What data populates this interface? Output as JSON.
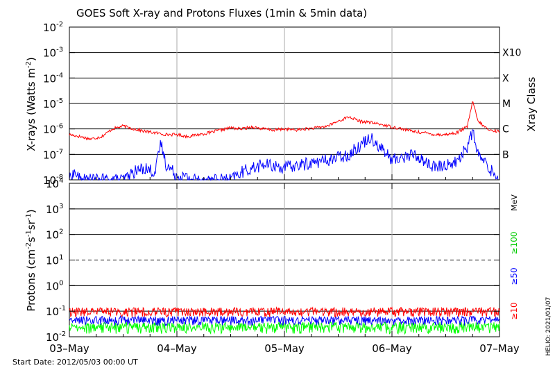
{
  "chart_data": [
    {
      "type": "line",
      "title": "GOES Soft X-ray and Protons Fluxes   (1min & 5min data)",
      "ylabel": "X-rays (Watts m",
      "ylabel_sup": "-2",
      "ylabel_close": ")",
      "yscale": "log",
      "ylim": [
        1e-08,
        0.01
      ],
      "y_ticks": [
        {
          "value": 1e-08,
          "base": "10",
          "exp": "-8"
        },
        {
          "value": 1e-07,
          "base": "10",
          "exp": "-7"
        },
        {
          "value": 1e-06,
          "base": "10",
          "exp": "-6"
        },
        {
          "value": 1e-05,
          "base": "10",
          "exp": "-5"
        },
        {
          "value": 0.0001,
          "base": "10",
          "exp": "-4"
        },
        {
          "value": 0.001,
          "base": "10",
          "exp": "-3"
        },
        {
          "value": 0.01,
          "base": "10",
          "exp": "-2"
        }
      ],
      "right_axis_label": "Xray Class",
      "class_labels": [
        {
          "value": 0.001,
          "label": "X10"
        },
        {
          "value": 0.0001,
          "label": "X"
        },
        {
          "value": 1e-05,
          "label": "M"
        },
        {
          "value": 1e-06,
          "label": "C"
        },
        {
          "value": 1e-07,
          "label": "B"
        }
      ],
      "grid_lines": [
        1e-07,
        1e-06,
        1e-05,
        0.0001,
        0.001
      ],
      "series": [
        {
          "color": "#ff0000",
          "x": [
            0,
            0.1,
            0.2,
            0.3,
            0.35,
            0.4,
            0.5,
            0.6,
            0.7,
            0.8,
            0.9,
            1.0,
            1.1,
            1.2,
            1.3,
            1.4,
            1.5,
            1.6,
            1.7,
            1.8,
            1.9,
            2.0,
            2.1,
            2.2,
            2.3,
            2.4,
            2.5,
            2.6,
            2.7,
            2.8,
            2.9,
            3.0,
            3.1,
            3.2,
            3.3,
            3.4,
            3.5,
            3.6,
            3.7,
            3.75,
            3.8,
            3.9,
            4.0
          ],
          "y": [
            6e-07,
            5e-07,
            4e-07,
            5e-07,
            7e-07,
            1e-06,
            1.3e-06,
            1e-06,
            8e-07,
            7e-07,
            6e-07,
            6e-07,
            5e-07,
            6e-07,
            7e-07,
            9e-07,
            1.1e-06,
            1e-06,
            1.2e-06,
            1e-06,
            9e-07,
            1e-06,
            9e-07,
            1e-06,
            1.1e-06,
            1.3e-06,
            2e-06,
            3e-06,
            2e-06,
            1.8e-06,
            1.5e-06,
            1.2e-06,
            1e-06,
            8e-07,
            7e-07,
            6e-07,
            6e-07,
            7e-07,
            1.2e-06,
            1.2e-05,
            2e-06,
            9e-07,
            8e-07
          ]
        },
        {
          "color": "#0000ff",
          "x": [
            0,
            0.05,
            0.1,
            0.5,
            0.6,
            0.7,
            0.8,
            0.85,
            0.9,
            1.0,
            1.2,
            1.5,
            1.6,
            1.8,
            2.0,
            2.3,
            2.4,
            2.6,
            2.8,
            3.0,
            3.2,
            3.4,
            3.6,
            3.7,
            3.75,
            3.8,
            3.9,
            4.0
          ],
          "y": [
            1e-08,
            2e-08,
            1e-08,
            1e-08,
            2e-08,
            3e-08,
            2e-08,
            3e-07,
            4e-08,
            1.5e-08,
            1e-08,
            1e-08,
            2e-08,
            4e-08,
            3e-08,
            5e-08,
            6e-08,
            1e-07,
            5e-07,
            6e-08,
            1e-07,
            3e-08,
            5e-08,
            2e-07,
            8e-07,
            1e-07,
            3e-08,
            1e-08
          ]
        }
      ]
    },
    {
      "type": "line",
      "ylabel": "Protons (cm",
      "ylabel_sup1": "-2",
      "ylabel_mid1": "s",
      "ylabel_sup2": "-1",
      "ylabel_mid2": "sr",
      "ylabel_sup3": "-1",
      "ylabel_close": ")",
      "yscale": "log",
      "ylim": [
        0.01,
        10000
      ],
      "y_ticks": [
        {
          "value": 0.01,
          "base": "10",
          "exp": "-2"
        },
        {
          "value": 0.1,
          "base": "10",
          "exp": "-1"
        },
        {
          "value": 1,
          "base": "10",
          "exp": "0"
        },
        {
          "value": 10,
          "base": "10",
          "exp": "1"
        },
        {
          "value": 100,
          "base": "10",
          "exp": "2"
        },
        {
          "value": 1000,
          "base": "10",
          "exp": "3"
        },
        {
          "value": 10000,
          "base": "10",
          "exp": "4"
        }
      ],
      "grid_lines": [
        0.1,
        1,
        100,
        1000
      ],
      "dashed_line": 10,
      "unit_label": "MeV",
      "series": [
        {
          "name": "≥100",
          "color": "#00ff00",
          "baseline": 0.025,
          "band": 0.012
        },
        {
          "name": "≥50",
          "color": "#0000ff",
          "baseline": 0.045,
          "band": 0.018
        },
        {
          "name": "≥10",
          "color": "#ff0000",
          "baseline": 0.1,
          "band": 0.04
        }
      ]
    }
  ],
  "x_axis": {
    "tick_labels": [
      "03–May",
      "04–May",
      "05–May",
      "06–May",
      "07–May"
    ],
    "days": [
      0,
      1,
      2,
      3,
      4
    ]
  },
  "footer": {
    "start_date": "Start Date: 2012/05/03 00:00 UT",
    "credit": "HELIO: 2021/01/07"
  }
}
